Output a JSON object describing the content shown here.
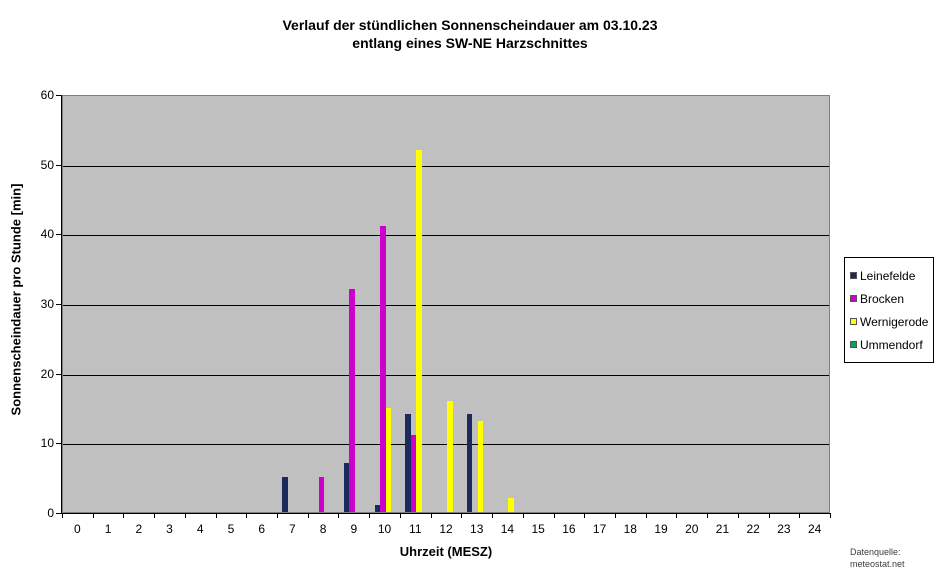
{
  "chart_data": {
    "type": "bar",
    "title_line1": "Verlauf der stündlichen Sonnenscheindauer am 03.10.23",
    "title_line2": "entlang eines SW-NE Harzschnittes",
    "xlabel": "Uhrzeit (MESZ)",
    "ylabel": "Sonnenscheindauer pro Stunde [min]",
    "ylim": [
      0,
      60
    ],
    "ytick_step": 10,
    "grid": true,
    "legend_position": "right",
    "plot_bg_color": "#c0c0c0",
    "categories": [
      0,
      1,
      2,
      3,
      4,
      5,
      6,
      7,
      8,
      9,
      10,
      11,
      12,
      13,
      14,
      15,
      16,
      17,
      18,
      19,
      20,
      21,
      22,
      23,
      24
    ],
    "series": [
      {
        "name": "Leinefelde",
        "color": "#1b2a5e",
        "values": [
          0,
          0,
          0,
          0,
          0,
          0,
          0,
          5,
          0,
          7,
          1,
          14,
          0,
          14,
          0,
          0,
          0,
          0,
          0,
          0,
          0,
          0,
          0,
          0,
          0
        ]
      },
      {
        "name": "Brocken",
        "color": "#cc00cc",
        "values": [
          0,
          0,
          0,
          0,
          0,
          0,
          0,
          0,
          5,
          32,
          41,
          11,
          0,
          0,
          0,
          0,
          0,
          0,
          0,
          0,
          0,
          0,
          0,
          0,
          0
        ]
      },
      {
        "name": "Wernigerode",
        "color": "#ffff00",
        "values": [
          0,
          0,
          0,
          0,
          0,
          0,
          0,
          0,
          0,
          0,
          15,
          52,
          16,
          13,
          2,
          0,
          0,
          0,
          0,
          0,
          0,
          0,
          0,
          0,
          0
        ]
      },
      {
        "name": "Ummendorf",
        "color": "#00a651",
        "values": [
          0,
          0,
          0,
          0,
          0,
          0,
          0,
          0,
          0,
          0,
          0,
          0,
          0,
          0,
          0,
          0,
          0,
          0,
          0,
          0,
          0,
          0,
          0,
          0,
          0
        ]
      }
    ]
  },
  "source": {
    "line1": "Datenquelle:",
    "line2": "meteostat.net"
  }
}
